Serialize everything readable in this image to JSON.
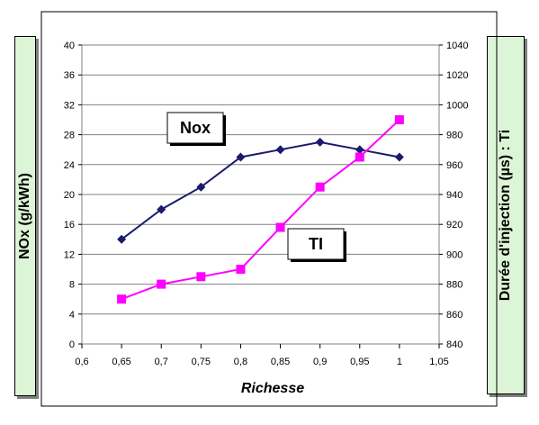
{
  "chart_data": {
    "type": "line",
    "xlabel": "Richesse",
    "ylabel_left": "NOx (g/kWh)",
    "ylabel_right": "Durée d'injection (µs) : Ti",
    "xlim": [
      0.6,
      1.05
    ],
    "ylim_left": [
      0,
      40
    ],
    "ylim_right": [
      840,
      1040
    ],
    "x_ticks": [
      "0,6",
      "0,65",
      "0,7",
      "0,75",
      "0,8",
      "0,85",
      "0,9",
      "0,95",
      "1",
      "1,05"
    ],
    "y_left_ticks": [
      "0",
      "4",
      "8",
      "12",
      "16",
      "20",
      "24",
      "28",
      "32",
      "36",
      "40"
    ],
    "y_right_ticks": [
      "840",
      "860",
      "880",
      "900",
      "920",
      "940",
      "960",
      "980",
      "1000",
      "1020",
      "1040"
    ],
    "grid": "horizontal",
    "series": [
      {
        "name": "Nox",
        "axis": "left",
        "color": "#1a1a6e",
        "marker": "diamond",
        "x": [
          0.65,
          0.7,
          0.75,
          0.8,
          0.85,
          0.9,
          0.95,
          1.0
        ],
        "y": [
          14,
          18,
          21,
          25,
          26,
          27,
          26,
          25
        ]
      },
      {
        "name": "TI",
        "axis": "right",
        "color": "#ff00ff",
        "marker": "square",
        "x": [
          0.65,
          0.7,
          0.75,
          0.8,
          0.85,
          0.9,
          0.95,
          1.0
        ],
        "y": [
          870,
          880,
          885,
          890,
          918,
          945,
          965,
          990
        ]
      }
    ]
  }
}
